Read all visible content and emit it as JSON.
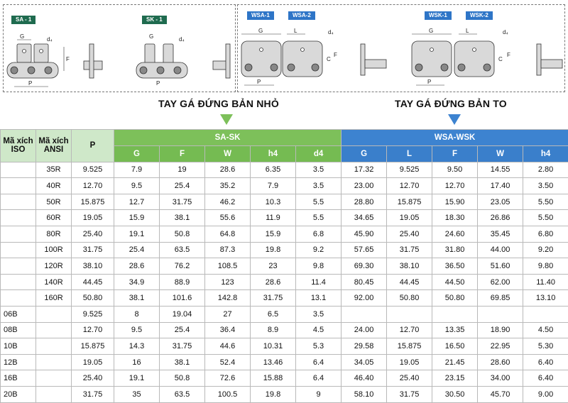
{
  "diagram_tags": {
    "sa1": "SA - 1",
    "sk1": "SK - 1",
    "wsa1": "WSA-1",
    "wsa2": "WSA-2",
    "wsk1": "WSK-1",
    "wsk2": "WSK-2"
  },
  "dim_labels": {
    "G": "G",
    "L": "L",
    "F": "F",
    "C": "C",
    "P": "P",
    "d4": "d₄"
  },
  "headlines": {
    "small": "TAY GÁ ĐỨNG BẢN NHỎ",
    "large": "TAY GÁ ĐỨNG BẢN TO"
  },
  "colors": {
    "green": "#7dc05a",
    "blue": "#3d83d0",
    "light_green": "#cfe8c9"
  },
  "table": {
    "headers": {
      "iso": "Mã xích ISO",
      "ansi": "Mã xích ANSI",
      "p": "P",
      "group_sa": "SA-SK",
      "group_wsa": "WSA-WSK",
      "sa_cols": [
        "G",
        "F",
        "W",
        "h4",
        "d4"
      ],
      "wsa_cols": [
        "G",
        "L",
        "F",
        "W",
        "h4"
      ]
    },
    "rows": [
      [
        "",
        "35R",
        "9.525",
        "7.9",
        "19",
        "28.6",
        "6.35",
        "3.5",
        "17.32",
        "9.525",
        "9.50",
        "14.55",
        "2.80"
      ],
      [
        "",
        "40R",
        "12.70",
        "9.5",
        "25.4",
        "35.2",
        "7.9",
        "3.5",
        "23.00",
        "12.70",
        "12.70",
        "17.40",
        "3.50"
      ],
      [
        "",
        "50R",
        "15.875",
        "12.7",
        "31.75",
        "46.2",
        "10.3",
        "5.5",
        "28.80",
        "15.875",
        "15.90",
        "23.05",
        "5.50"
      ],
      [
        "",
        "60R",
        "19.05",
        "15.9",
        "38.1",
        "55.6",
        "11.9",
        "5.5",
        "34.65",
        "19.05",
        "18.30",
        "26.86",
        "5.50"
      ],
      [
        "",
        "80R",
        "25.40",
        "19.1",
        "50.8",
        "64.8",
        "15.9",
        "6.8",
        "45.90",
        "25.40",
        "24.60",
        "35.45",
        "6.80"
      ],
      [
        "",
        "100R",
        "31.75",
        "25.4",
        "63.5",
        "87.3",
        "19.8",
        "9.2",
        "57.65",
        "31.75",
        "31.80",
        "44.00",
        "9.20"
      ],
      [
        "",
        "120R",
        "38.10",
        "28.6",
        "76.2",
        "108.5",
        "23",
        "9.8",
        "69.30",
        "38.10",
        "36.50",
        "51.60",
        "9.80"
      ],
      [
        "",
        "140R",
        "44.45",
        "34.9",
        "88.9",
        "123",
        "28.6",
        "11.4",
        "80.45",
        "44.45",
        "44.50",
        "62.00",
        "11.40"
      ],
      [
        "",
        "160R",
        "50.80",
        "38.1",
        "101.6",
        "142.8",
        "31.75",
        "13.1",
        "92.00",
        "50.80",
        "50.80",
        "69.85",
        "13.10"
      ],
      [
        "06B",
        "",
        "9.525",
        "8",
        "19.04",
        "27",
        "6.5",
        "3.5",
        "",
        "",
        "",
        "",
        ""
      ],
      [
        "08B",
        "",
        "12.70",
        "9.5",
        "25.4",
        "36.4",
        "8.9",
        "4.5",
        "24.00",
        "12.70",
        "13.35",
        "18.90",
        "4.50"
      ],
      [
        "10B",
        "",
        "15.875",
        "14.3",
        "31.75",
        "44.6",
        "10.31",
        "5.3",
        "29.58",
        "15.875",
        "16.50",
        "22.95",
        "5.30"
      ],
      [
        "12B",
        "",
        "19.05",
        "16",
        "38.1",
        "52.4",
        "13.46",
        "6.4",
        "34.05",
        "19.05",
        "21.45",
        "28.60",
        "6.40"
      ],
      [
        "16B",
        "",
        "25.40",
        "19.1",
        "50.8",
        "72.6",
        "15.88",
        "6.4",
        "46.40",
        "25.40",
        "23.15",
        "34.00",
        "6.40"
      ],
      [
        "20B",
        "",
        "31.75",
        "35",
        "63.5",
        "100.5",
        "19.8",
        "9",
        "58.10",
        "31.75",
        "30.50",
        "45.70",
        "9.00"
      ]
    ]
  }
}
